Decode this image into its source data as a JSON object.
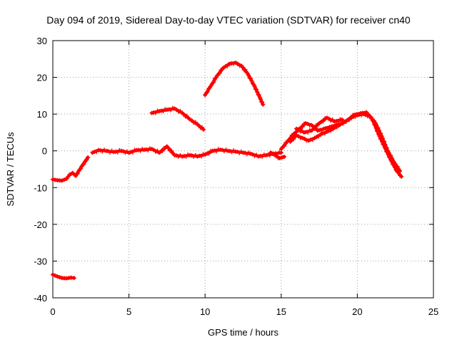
{
  "chart_data": {
    "type": "scatter",
    "title": "Day 094 of 2019, Sidereal Day-to-day VTEC variation (SDTVAR) for receiver cn40",
    "xlabel": "GPS time / hours",
    "ylabel": "SDTVAR / TECUs",
    "xlim": [
      0,
      25
    ],
    "ylim": [
      -40,
      30
    ],
    "xticks": [
      0,
      5,
      10,
      15,
      20,
      25
    ],
    "yticks": [
      -40,
      -30,
      -20,
      -10,
      0,
      10,
      20,
      30
    ],
    "grid": true,
    "marker": "+",
    "color": "#ff0000",
    "series": [
      {
        "name": "arc-low-start",
        "x": [
          0.0,
          0.3,
          0.6,
          0.9,
          1.2,
          1.4
        ],
        "y": [
          -33.7,
          -34.2,
          -34.6,
          -34.7,
          -34.5,
          -34.6
        ]
      },
      {
        "name": "arc-early",
        "x": [
          0.0,
          0.3,
          0.6,
          0.9,
          1.1,
          1.3,
          1.5,
          1.7,
          1.9,
          2.1,
          2.3
        ],
        "y": [
          -7.8,
          -8.0,
          -8.1,
          -7.6,
          -6.5,
          -6.0,
          -6.8,
          -5.5,
          -4.2,
          -3.0,
          -1.8
        ]
      },
      {
        "name": "arc-main-flat",
        "x": [
          2.6,
          3.0,
          3.5,
          4.0,
          4.5,
          5.0,
          5.5,
          6.0,
          6.5,
          7.0,
          7.5,
          8.0,
          8.5,
          9.0,
          9.5,
          10.0,
          10.5,
          11.0,
          11.5,
          12.0,
          12.5,
          13.0,
          13.5,
          14.0,
          14.5,
          15.0
        ],
        "y": [
          -0.5,
          0.2,
          0.0,
          -0.3,
          0.0,
          -0.5,
          0.2,
          0.3,
          0.5,
          -0.5,
          1.2,
          -1.2,
          -1.5,
          -1.2,
          -1.5,
          -1.0,
          0.0,
          0.3,
          0.0,
          -0.2,
          -0.5,
          -0.8,
          -1.5,
          -1.2,
          -0.8,
          -0.5
        ]
      },
      {
        "name": "arc-mid-hump",
        "x": [
          6.5,
          7.0,
          7.5,
          8.0,
          8.5,
          9.0,
          9.5,
          9.9
        ],
        "y": [
          10.3,
          10.8,
          11.2,
          11.5,
          10.3,
          8.6,
          7.2,
          5.8
        ]
      },
      {
        "name": "arc-peak",
        "x": [
          10.0,
          10.4,
          10.8,
          11.2,
          11.6,
          12.0,
          12.4,
          12.8,
          13.2,
          13.6,
          13.8
        ],
        "y": [
          15.2,
          17.8,
          20.5,
          22.6,
          23.7,
          24.0,
          23.1,
          21.0,
          18.0,
          14.5,
          12.6
        ]
      },
      {
        "name": "arc-dip",
        "x": [
          14.3,
          14.6,
          14.9,
          15.2
        ],
        "y": [
          -0.5,
          -1.2,
          -2.0,
          -1.6
        ]
      },
      {
        "name": "arc-rise-a",
        "x": [
          15.0,
          15.4,
          15.8,
          16.2,
          16.6,
          17.0,
          17.4,
          17.8,
          18.2,
          18.6,
          19.0,
          19.4,
          19.8,
          20.2,
          20.6,
          21.0,
          21.4,
          21.8,
          22.2,
          22.6,
          22.9
        ],
        "y": [
          0.5,
          2.5,
          4.5,
          6.0,
          7.5,
          7.0,
          5.5,
          6.0,
          6.5,
          7.0,
          7.5,
          8.5,
          9.8,
          10.2,
          10.5,
          8.5,
          4.5,
          1.0,
          -2.5,
          -5.5,
          -7.0
        ]
      },
      {
        "name": "arc-rise-b",
        "x": [
          15.6,
          16.0,
          16.4,
          16.8,
          17.2,
          17.6,
          18.0,
          18.4,
          18.8,
          19.2,
          19.6,
          20.0,
          20.4,
          20.8,
          21.2,
          21.6,
          22.0,
          22.4,
          22.8
        ],
        "y": [
          2.5,
          4.2,
          3.5,
          2.8,
          3.5,
          4.5,
          5.2,
          6.0,
          7.0,
          8.0,
          9.0,
          9.8,
          10.0,
          9.5,
          7.5,
          4.0,
          0.0,
          -3.0,
          -5.5
        ]
      },
      {
        "name": "arc-upper-wiggle",
        "x": [
          16.0,
          16.5,
          17.0,
          17.5,
          18.0,
          18.5,
          19.0
        ],
        "y": [
          6.0,
          5.0,
          5.5,
          7.5,
          9.0,
          8.0,
          8.5
        ]
      }
    ]
  }
}
